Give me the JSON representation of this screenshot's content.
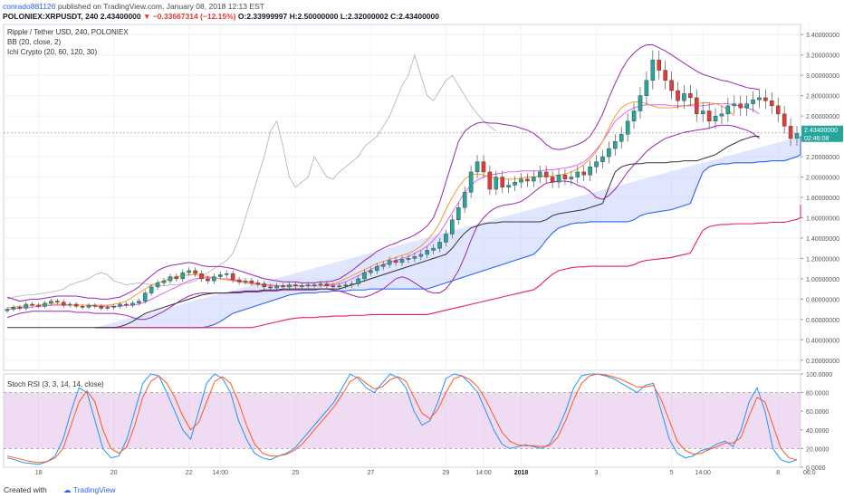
{
  "header": {
    "publisher": "conrado881126",
    "published_text": "published on TradingView.com, January 08, 2018 12:13 EST",
    "symbol": "POLONIEX:XRPUSDT, 240",
    "last": "2.43400000",
    "change": "−0.33667314 (−12.15%)",
    "ohlc": "O:2.33999997 H:2.50000000 L:2.32000002 C:2.43400000"
  },
  "legend": {
    "title": "Ripple / Tether USD, 240, POLONIEX",
    "bb": "BB (20, close, 2)",
    "ichi": "Ichi Crypto (20, 60, 120, 30)",
    "rsi": "Stoch RSI (3, 3, 14, 14, close)"
  },
  "price_badge": {
    "price": "2.43400000",
    "countdown": "02:46:08"
  },
  "footer": {
    "created": "Created with",
    "brand": "TradingView"
  },
  "colors": {
    "up": "#26a69a",
    "down": "#e53935",
    "bb": "#9c27b0",
    "cloud": "#2962ff",
    "lagging": "#b0b0b0",
    "base": "#333333",
    "conv": "#f7931a",
    "stoch_k": "#2196f3",
    "stoch_d": "#ff5722"
  },
  "chart_data": [
    {
      "type": "candlestick",
      "title": "Ripple / Tether USD, 240, POLONIEX",
      "ylim": [
        0.1,
        3.5
      ],
      "yticks": [
        "3.40000000",
        "3.20000000",
        "3.00000000",
        "2.80000000",
        "2.60000000",
        "2.40000000",
        "2.20000000",
        "2.00000000",
        "1.80000000",
        "1.60000000",
        "1.40000000",
        "1.20000000",
        "1.00000000",
        "0.80000000",
        "0.60000000",
        "0.40000000",
        "0.20000000"
      ],
      "ytick_values": [
        3.4,
        3.2,
        3.0,
        2.8,
        2.6,
        2.4,
        2.2,
        2.0,
        1.8,
        1.6,
        1.4,
        1.2,
        1.0,
        0.8,
        0.6,
        0.4,
        0.2
      ],
      "xticks": [
        {
          "label": "18",
          "i": 5
        },
        {
          "label": "20",
          "i": 17
        },
        {
          "label": "22",
          "i": 29
        },
        {
          "label": "14:00",
          "i": 34
        },
        {
          "label": "25",
          "i": 46
        },
        {
          "label": "27",
          "i": 58
        },
        {
          "label": "29",
          "i": 70
        },
        {
          "label": "14:00",
          "i": 76
        },
        {
          "label": "2018",
          "i": 82
        },
        {
          "label": "3",
          "i": 94
        },
        {
          "label": "5",
          "i": 106
        },
        {
          "label": "14:00",
          "i": 111
        },
        {
          "label": "8",
          "i": 123
        },
        {
          "label": "06:0",
          "i": 128
        }
      ],
      "close": [
        0.7,
        0.72,
        0.71,
        0.75,
        0.74,
        0.73,
        0.76,
        0.78,
        0.77,
        0.74,
        0.75,
        0.73,
        0.72,
        0.74,
        0.73,
        0.71,
        0.72,
        0.73,
        0.75,
        0.74,
        0.76,
        0.78,
        0.86,
        0.92,
        0.96,
        0.98,
        1.02,
        1.0,
        1.06,
        1.08,
        1.05,
        1.0,
        0.98,
        1.02,
        1.04,
        1.05,
        0.99,
        0.97,
        0.98,
        0.96,
        0.95,
        0.92,
        0.91,
        0.93,
        0.92,
        0.94,
        0.93,
        0.93,
        0.94,
        0.94,
        0.95,
        0.93,
        0.92,
        0.93,
        0.94,
        0.95,
        1.0,
        1.06,
        1.08,
        1.12,
        1.14,
        1.18,
        1.16,
        1.19,
        1.2,
        1.22,
        1.24,
        1.28,
        1.3,
        1.36,
        1.44,
        1.58,
        1.7,
        1.85,
        2.05,
        2.15,
        2.05,
        1.88,
        2.0,
        1.9,
        1.92,
        1.95,
        1.98,
        1.96,
        2.0,
        2.05,
        2.0,
        1.95,
        2.02,
        1.98,
        2.0,
        2.05,
        2.02,
        2.1,
        2.15,
        2.2,
        2.28,
        2.35,
        2.42,
        2.55,
        2.65,
        2.8,
        2.95,
        3.15,
        3.05,
        2.95,
        2.85,
        2.75,
        2.82,
        2.78,
        2.62,
        2.65,
        2.55,
        2.6,
        2.62,
        2.7,
        2.72,
        2.68,
        2.72,
        2.76,
        2.78,
        2.75,
        2.7,
        2.62,
        2.5,
        2.38,
        2.43
      ],
      "bb_upper": [
        0.82,
        0.8,
        0.78,
        0.79,
        0.8,
        0.8,
        0.81,
        0.82,
        0.83,
        0.83,
        0.83,
        0.83,
        0.82,
        0.81,
        0.81,
        0.8,
        0.8,
        0.81,
        0.82,
        0.85,
        0.88,
        0.92,
        0.98,
        1.03,
        1.08,
        1.11,
        1.13,
        1.14,
        1.15,
        1.16,
        1.15,
        1.13,
        1.12,
        1.12,
        1.12,
        1.11,
        1.1,
        1.08,
        1.06,
        1.04,
        1.02,
        1.0,
        0.99,
        0.98,
        0.97,
        0.97,
        0.97,
        0.96,
        0.96,
        0.96,
        0.97,
        0.97,
        0.98,
        1.0,
        1.04,
        1.08,
        1.13,
        1.18,
        1.22,
        1.27,
        1.3,
        1.33,
        1.35,
        1.38,
        1.4,
        1.43,
        1.47,
        1.52,
        1.6,
        1.75,
        1.95,
        2.15,
        2.35,
        2.45,
        2.5,
        2.53,
        2.54,
        2.53,
        2.53,
        2.52,
        2.51,
        2.5,
        2.48,
        2.46,
        2.43,
        2.38,
        2.32,
        2.28,
        2.27,
        2.28,
        2.3,
        2.32,
        2.35,
        2.4,
        2.5,
        2.62,
        2.78,
        2.92,
        3.05,
        3.15,
        3.22,
        3.27,
        3.3,
        3.3,
        3.27,
        3.24,
        3.2,
        3.16,
        3.12,
        3.08,
        3.04,
        3.01,
        2.99,
        2.97,
        2.95,
        2.94,
        2.92,
        2.9,
        2.88,
        2.87,
        2.86
      ],
      "bb_lower": [
        0.62,
        0.64,
        0.66,
        0.67,
        0.68,
        0.68,
        0.68,
        0.68,
        0.68,
        0.68,
        0.68,
        0.67,
        0.67,
        0.67,
        0.66,
        0.66,
        0.66,
        0.66,
        0.65,
        0.64,
        0.62,
        0.6,
        0.6,
        0.62,
        0.65,
        0.68,
        0.72,
        0.76,
        0.8,
        0.83,
        0.85,
        0.86,
        0.86,
        0.86,
        0.86,
        0.86,
        0.86,
        0.86,
        0.87,
        0.87,
        0.87,
        0.88,
        0.88,
        0.88,
        0.89,
        0.89,
        0.89,
        0.89,
        0.89,
        0.89,
        0.9,
        0.9,
        0.89,
        0.88,
        0.86,
        0.84,
        0.82,
        0.82,
        0.84,
        0.87,
        0.9,
        0.95,
        1.0,
        1.02,
        1.0,
        0.96,
        0.92,
        0.88,
        0.86,
        0.86,
        0.9,
        0.98,
        1.08,
        1.22,
        1.38,
        1.52,
        1.6,
        1.66,
        1.7,
        1.72,
        1.73,
        1.74,
        1.76,
        1.8,
        1.85,
        1.9,
        1.94,
        1.95,
        1.96,
        1.96,
        1.95,
        1.92,
        1.9,
        1.86,
        1.8,
        1.78,
        1.82,
        1.88,
        1.96,
        2.05,
        2.12,
        2.18,
        2.25,
        2.3,
        2.34,
        2.38,
        2.4,
        2.42,
        2.44,
        2.45,
        2.46,
        2.47,
        2.48,
        2.5,
        2.51,
        2.51,
        2.5,
        2.48,
        2.46,
        2.43,
        2.38
      ],
      "bb_mid": [
        0.7,
        0.71,
        0.71,
        0.72,
        0.72,
        0.73,
        0.73,
        0.74,
        0.74,
        0.74,
        0.74,
        0.74,
        0.74,
        0.74,
        0.73,
        0.73,
        0.73,
        0.73,
        0.73,
        0.74,
        0.74,
        0.75,
        0.77,
        0.8,
        0.83,
        0.86,
        0.89,
        0.92,
        0.95,
        0.98,
        1.0,
        1.01,
        1.01,
        1.01,
        1.0,
        1.0,
        0.99,
        0.98,
        0.97,
        0.96,
        0.95,
        0.94,
        0.94,
        0.93,
        0.93,
        0.93,
        0.93,
        0.93,
        0.93,
        0.93,
        0.93,
        0.93,
        0.94,
        0.95,
        0.97,
        1.0,
        1.03,
        1.06,
        1.09,
        1.12,
        1.14,
        1.16,
        1.18,
        1.2,
        1.22,
        1.25,
        1.28,
        1.32,
        1.38,
        1.45,
        1.55,
        1.65,
        1.75,
        1.85,
        1.92,
        1.97,
        2.0,
        2.02,
        2.03,
        2.04,
        2.05,
        2.05,
        2.06,
        2.06,
        2.06,
        2.06,
        2.07,
        2.07,
        2.08,
        2.09,
        2.1,
        2.12,
        2.15,
        2.2,
        2.27,
        2.35,
        2.45,
        2.55,
        2.6,
        2.65,
        2.68,
        2.7,
        2.71,
        2.71,
        2.71,
        2.71,
        2.7,
        2.7,
        2.7,
        2.7,
        2.7,
        2.7,
        2.71,
        2.72,
        2.72,
        2.72,
        2.71,
        2.7,
        2.68,
        2.66,
        2.62
      ],
      "conversion": [
        0.72,
        0.72,
        0.73,
        0.73,
        0.74,
        0.74,
        0.75,
        0.75,
        0.75,
        0.75,
        0.74,
        0.74,
        0.74,
        0.74,
        0.74,
        0.74,
        0.74,
        0.75,
        0.76,
        0.78,
        0.82,
        0.86,
        0.9,
        0.94,
        0.96,
        0.98,
        1.0,
        1.02,
        1.03,
        1.04,
        1.04,
        1.03,
        1.02,
        1.01,
        1.0,
        0.99,
        0.98,
        0.97,
        0.96,
        0.95,
        0.94,
        0.94,
        0.93,
        0.93,
        0.93,
        0.93,
        0.93,
        0.93,
        0.93,
        0.93,
        0.93,
        0.94,
        0.95,
        0.97,
        1.0,
        1.03,
        1.06,
        1.09,
        1.12,
        1.15,
        1.17,
        1.19,
        1.21,
        1.23,
        1.25,
        1.28,
        1.32,
        1.38,
        1.45,
        1.55,
        1.68,
        1.8,
        1.9,
        1.98,
        2.02,
        2.03,
        2.02,
        2.0,
        1.99,
        1.98,
        1.98,
        1.98,
        1.99,
        2.0,
        2.0,
        2.01,
        2.01,
        2.01,
        2.02,
        2.03,
        2.05,
        2.08,
        2.12,
        2.18,
        2.25,
        2.35,
        2.48,
        2.6,
        2.68,
        2.72,
        2.74,
        2.74,
        2.72,
        2.7,
        2.68,
        2.68,
        2.68,
        2.69,
        2.7,
        2.71,
        2.72,
        2.73,
        2.73,
        2.72,
        2.7,
        2.66,
        2.6
      ],
      "base": [
        0.52,
        0.52,
        0.52,
        0.52,
        0.52,
        0.52,
        0.52,
        0.52,
        0.52,
        0.52,
        0.52,
        0.52,
        0.52,
        0.52,
        0.52,
        0.52,
        0.52,
        0.52,
        0.53,
        0.55,
        0.58,
        0.62,
        0.66,
        0.68,
        0.7,
        0.72,
        0.74,
        0.76,
        0.78,
        0.8,
        0.82,
        0.84,
        0.85,
        0.86,
        0.86,
        0.86,
        0.87,
        0.87,
        0.88,
        0.88,
        0.88,
        0.89,
        0.89,
        0.89,
        0.9,
        0.9,
        0.9,
        0.9,
        0.9,
        0.9,
        0.9,
        0.9,
        0.9,
        0.9,
        0.92,
        0.94,
        0.96,
        0.98,
        1.0,
        1.02,
        1.04,
        1.06,
        1.08,
        1.1,
        1.12,
        1.14,
        1.16,
        1.18,
        1.2,
        1.22,
        1.24,
        1.3,
        1.38,
        1.45,
        1.5,
        1.52,
        1.54,
        1.55,
        1.55,
        1.56,
        1.56,
        1.56,
        1.56,
        1.56,
        1.56,
        1.56,
        1.58,
        1.62,
        1.64,
        1.65,
        1.66,
        1.67,
        1.68,
        1.7,
        1.72,
        1.74,
        1.9,
        2.05,
        2.1,
        2.12,
        2.13,
        2.13,
        2.14,
        2.14,
        2.14,
        2.14,
        2.15,
        2.15,
        2.16,
        2.16,
        2.16,
        2.18,
        2.2,
        2.22,
        2.26,
        2.3,
        2.33,
        2.36,
        2.38,
        2.4,
        2.4
      ],
      "lagging": [
        0.8,
        0.82,
        0.83,
        0.84,
        0.84,
        0.85,
        0.86,
        0.87,
        0.88,
        0.9,
        0.94,
        0.96,
        0.98,
        1.0,
        1.04,
        1.06,
        1.04,
        0.98,
        0.96,
        0.94,
        0.95,
        0.96,
        0.95,
        0.94,
        0.93,
        0.93,
        0.94,
        0.94,
        0.95,
        0.96,
        0.98,
        1.02,
        1.06,
        1.1,
        1.14,
        1.18,
        1.25,
        1.4,
        1.6,
        1.8,
        2.0,
        2.2,
        2.45,
        2.55,
        2.3,
        2.0,
        1.9,
        1.95,
        2.0,
        2.2,
        2.1,
        2.0,
        1.98,
        2.05,
        2.1,
        2.15,
        2.2,
        2.3,
        2.35,
        2.4,
        2.5,
        2.6,
        2.75,
        2.9,
        3.0,
        3.2,
        3.0,
        2.8,
        2.75,
        2.85,
        2.95,
        3.0,
        2.9,
        2.8,
        2.7,
        2.62,
        2.55,
        2.5,
        2.45
      ]
    },
    {
      "type": "line",
      "title": "Stoch RSI (3, 3, 14, 14, close)",
      "ylim": [
        0,
        100
      ],
      "yticks": [
        "100.0000",
        "80.0000",
        "60.0000",
        "40.0000",
        "20.0000",
        "0.0000"
      ],
      "ytick_values": [
        100,
        80,
        60,
        40,
        20,
        0
      ],
      "series": [
        {
          "name": "K",
          "values": [
            10,
            8,
            5,
            4,
            3,
            6,
            12,
            30,
            60,
            85,
            80,
            50,
            20,
            10,
            12,
            30,
            60,
            90,
            100,
            98,
            80,
            60,
            40,
            30,
            60,
            90,
            100,
            95,
            80,
            50,
            30,
            15,
            10,
            8,
            12,
            15,
            20,
            30,
            40,
            50,
            60,
            70,
            85,
            100,
            95,
            85,
            80,
            90,
            100,
            96,
            85,
            60,
            45,
            50,
            70,
            95,
            100,
            98,
            90,
            80,
            60,
            40,
            25,
            20,
            22,
            24,
            22,
            20,
            25,
            40,
            60,
            85,
            98,
            100,
            100,
            98,
            95,
            90,
            85,
            80,
            88,
            90,
            60,
            30,
            15,
            10,
            12,
            18,
            20,
            25,
            28,
            22,
            40,
            70,
            85,
            60,
            20,
            8,
            5,
            8
          ]
        },
        {
          "name": "D",
          "values": [
            12,
            10,
            8,
            6,
            5,
            6,
            10,
            20,
            45,
            70,
            82,
            70,
            40,
            20,
            15,
            22,
            45,
            75,
            92,
            98,
            90,
            75,
            55,
            40,
            48,
            70,
            92,
            97,
            90,
            70,
            45,
            25,
            15,
            12,
            12,
            14,
            18,
            25,
            35,
            45,
            55,
            65,
            78,
            92,
            97,
            90,
            84,
            86,
            94,
            97,
            92,
            75,
            58,
            52,
            62,
            80,
            95,
            98,
            94,
            86,
            72,
            55,
            38,
            28,
            24,
            23,
            23,
            22,
            23,
            32,
            50,
            72,
            90,
            98,
            100,
            99,
            97,
            94,
            90,
            86,
            86,
            88,
            72,
            50,
            28,
            18,
            14,
            15,
            19,
            22,
            26,
            26,
            32,
            55,
            75,
            70,
            45,
            20,
            10,
            8
          ]
        }
      ]
    }
  ]
}
